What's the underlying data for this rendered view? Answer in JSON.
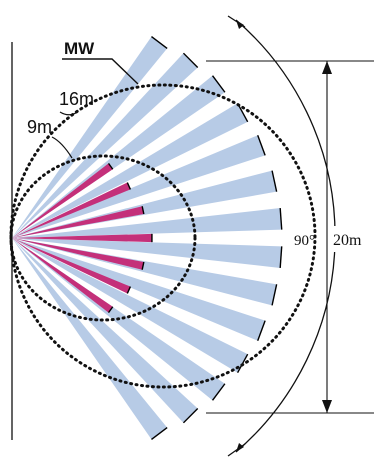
{
  "labels": {
    "mw": "MW",
    "range_16": "16m",
    "range_9": "9m",
    "angle": "90°",
    "width": "20m"
  },
  "colors": {
    "mw_beam": "#b7cbe6",
    "pir_beam": "#c4307a",
    "ink": "#111111"
  },
  "detection": {
    "mw_beam_count": 14,
    "pir_beam_count": 7,
    "pir_beam_length_m": 9,
    "mw_range_m": 16,
    "coverage_width_m": 20,
    "coverage_angle_deg": 90
  }
}
